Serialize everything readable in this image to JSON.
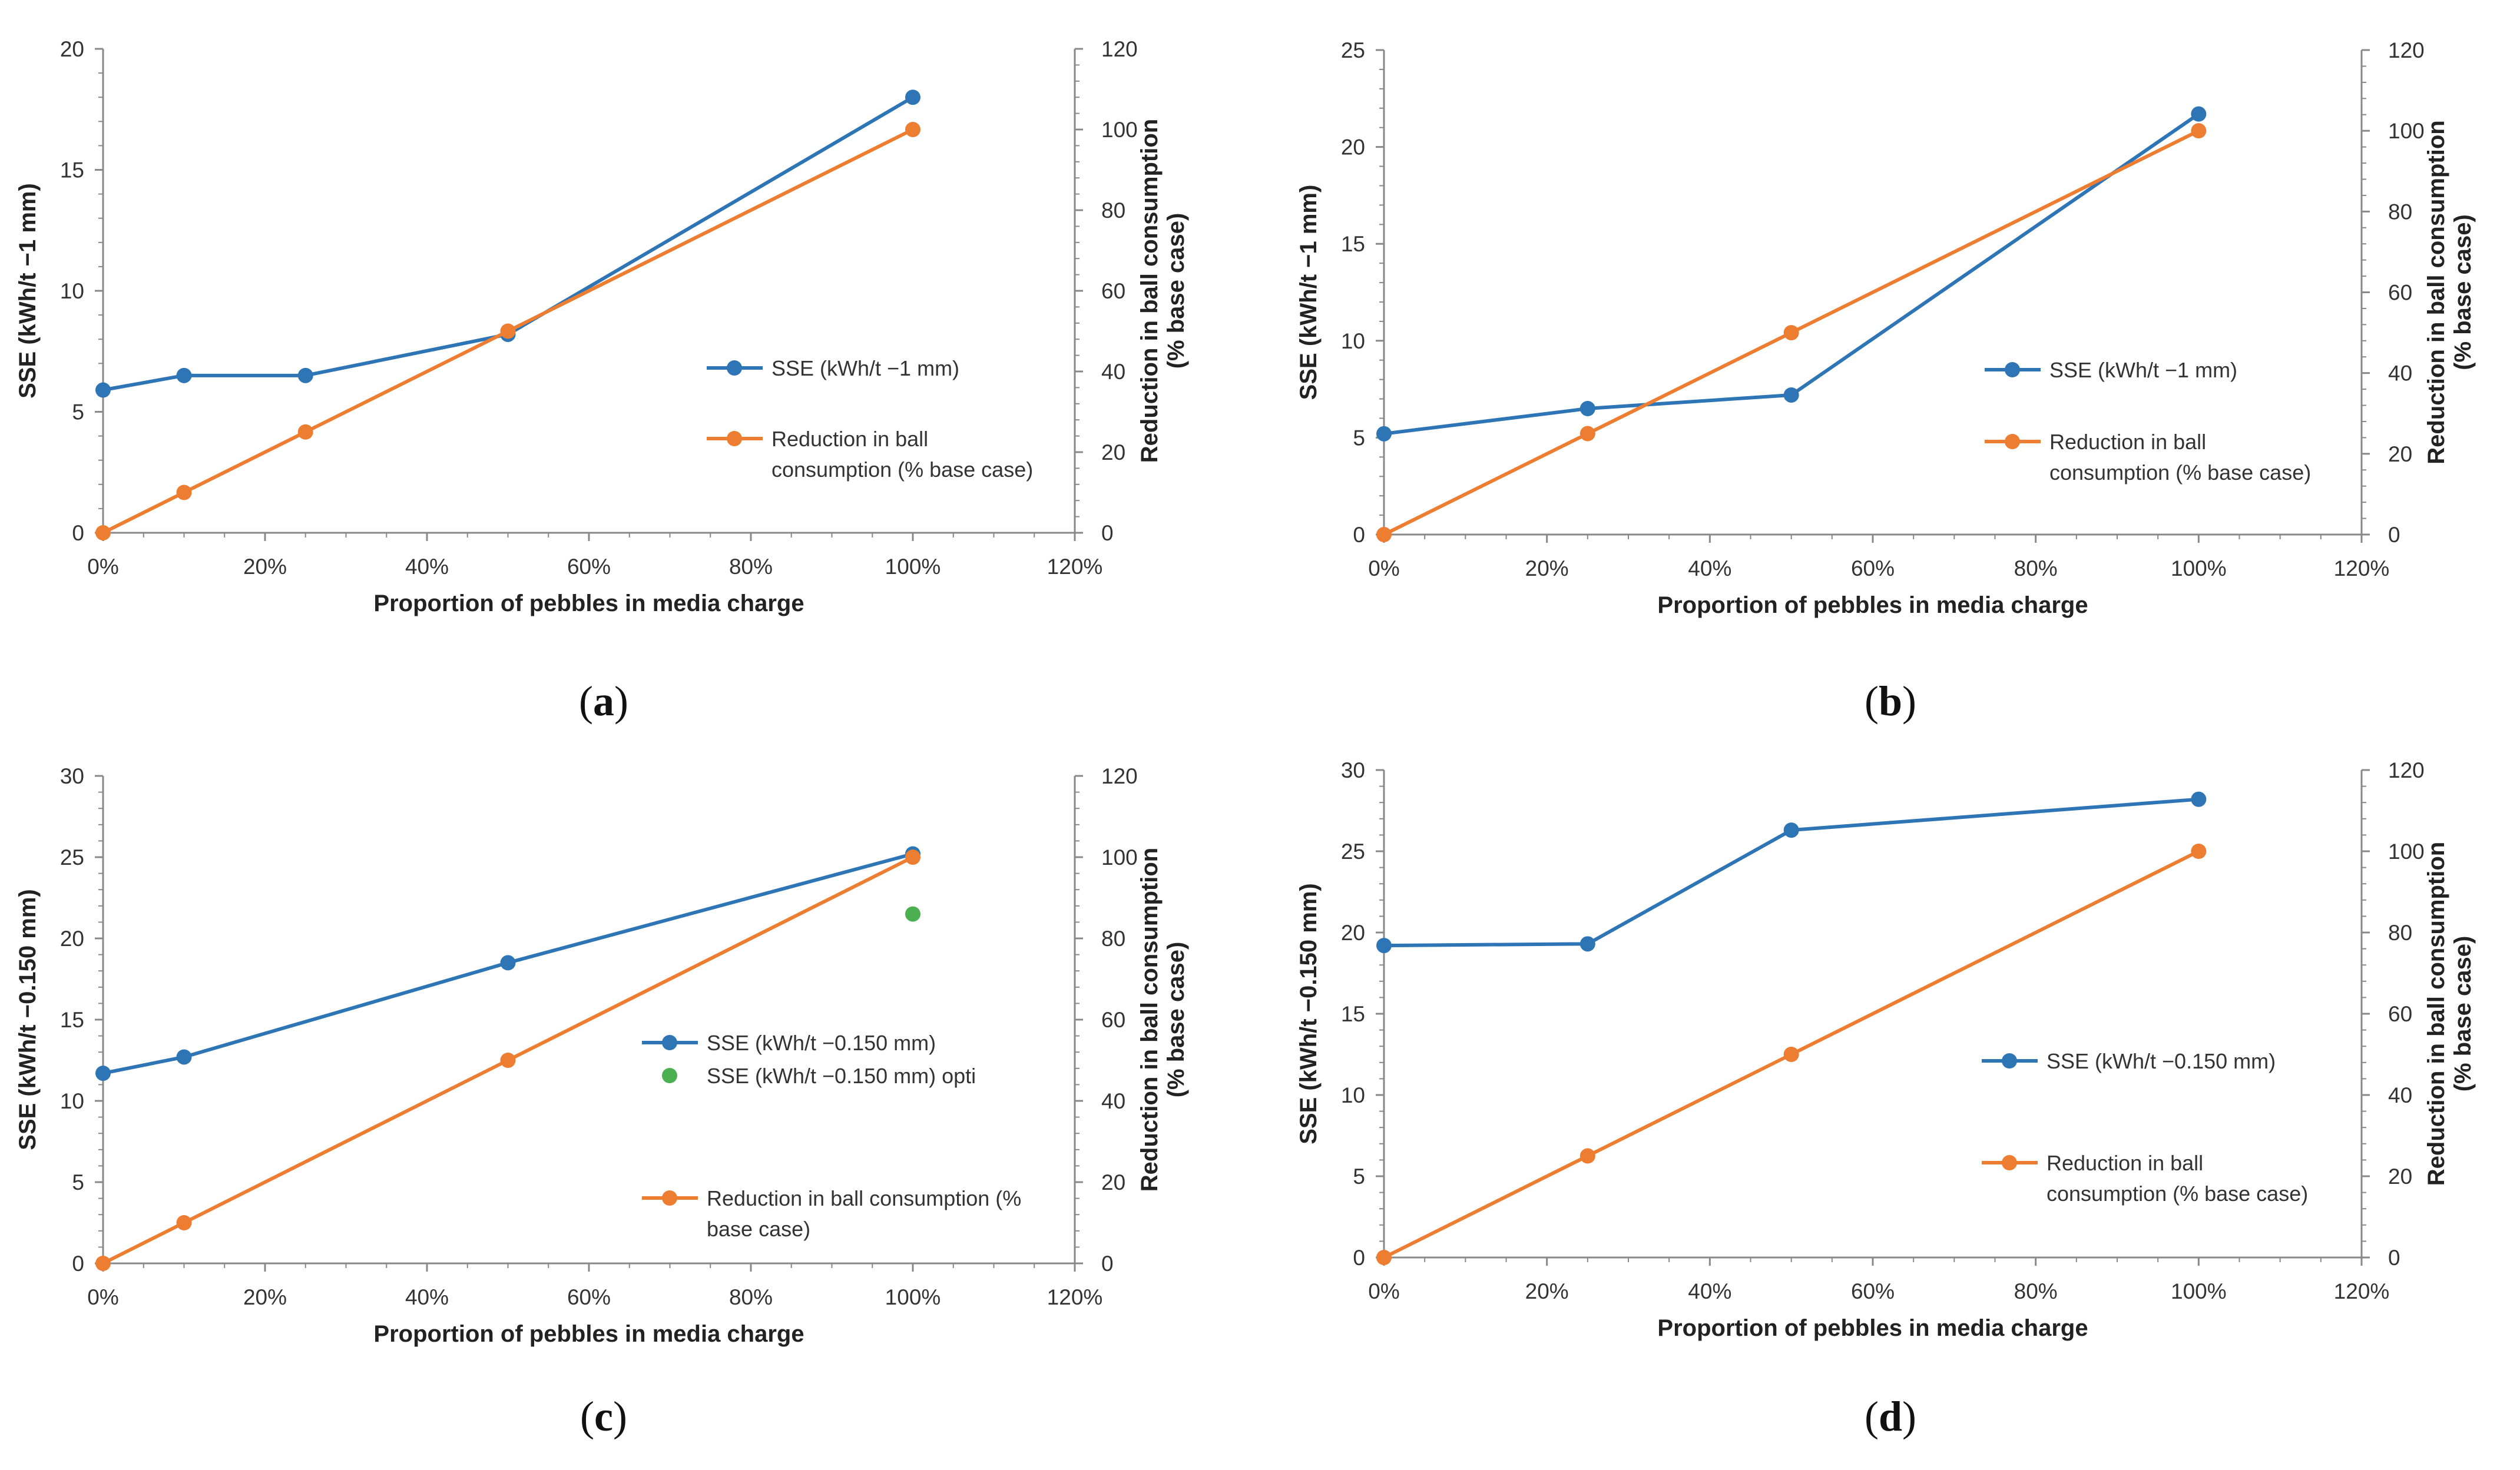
{
  "chart_data": [
    {
      "type": "line",
      "panel_label": "a",
      "xlabel": "Proportion of pebbles in media charge",
      "ylabel": "SSE (kWh/t −1 mm)",
      "y2label": [
        "Reduction in ball consumption",
        "(% base case)"
      ],
      "xlim": [
        0,
        1.2
      ],
      "x_ticks": [
        0,
        0.2,
        0.4,
        0.6,
        0.8,
        1.0,
        1.2
      ],
      "x_tick_labels": [
        "0%",
        "20%",
        "40%",
        "60%",
        "80%",
        "100%",
        "120%"
      ],
      "ylim": [
        0,
        20
      ],
      "y_ticks": [
        0,
        5,
        10,
        15,
        20
      ],
      "y_tick_labels": [
        "0",
        "5",
        "10",
        "15",
        "20"
      ],
      "y2lim": [
        0,
        120
      ],
      "y2_ticks": [
        0,
        20,
        40,
        60,
        80,
        100,
        120
      ],
      "y2_tick_labels": [
        "0",
        "20",
        "40",
        "60",
        "80",
        "100",
        "120"
      ],
      "series": [
        {
          "name": "SSE (kWh/t −1 mm)",
          "legend_lines": [
            "SSE (kWh/t −1 mm)"
          ],
          "axis": "left",
          "color": "#2E75B6",
          "line": true,
          "x": [
            0,
            0.1,
            0.25,
            0.5,
            1.0
          ],
          "values": [
            5.9,
            6.5,
            6.5,
            8.2,
            18.0
          ]
        },
        {
          "name": "Reduction in ball consumption (% base case)",
          "legend_lines": [
            "Reduction in ball",
            "consumption (% base case)"
          ],
          "axis": "right",
          "color": "#ED7D31",
          "line": true,
          "x": [
            0,
            0.1,
            0.25,
            0.5,
            1.0
          ],
          "values": [
            0,
            10,
            25,
            50,
            100
          ]
        }
      ]
    },
    {
      "type": "line",
      "panel_label": "b",
      "xlabel": "Proportion of pebbles in media charge",
      "ylabel": "SSE (kWh/t −1 mm)",
      "y2label": [
        "Reduction in ball consumption",
        "(% base case)"
      ],
      "xlim": [
        0,
        1.2
      ],
      "x_ticks": [
        0,
        0.2,
        0.4,
        0.6,
        0.8,
        1.0,
        1.2
      ],
      "x_tick_labels": [
        "0%",
        "20%",
        "40%",
        "60%",
        "80%",
        "100%",
        "120%"
      ],
      "ylim": [
        0,
        25
      ],
      "y_ticks": [
        0,
        5,
        10,
        15,
        20,
        25
      ],
      "y_tick_labels": [
        "0",
        "5",
        "10",
        "15",
        "20",
        "25"
      ],
      "y2lim": [
        0,
        120
      ],
      "y2_ticks": [
        0,
        20,
        40,
        60,
        80,
        100,
        120
      ],
      "y2_tick_labels": [
        "0",
        "20",
        "40",
        "60",
        "80",
        "100",
        "120"
      ],
      "series": [
        {
          "name": "SSE (kWh/t −1 mm)",
          "legend_lines": [
            "SSE (kWh/t −1 mm)"
          ],
          "axis": "left",
          "color": "#2E75B6",
          "line": true,
          "x": [
            0,
            0.25,
            0.5,
            1.0
          ],
          "values": [
            5.2,
            6.5,
            7.2,
            21.7
          ]
        },
        {
          "name": "Reduction in ball consumption (% base case)",
          "legend_lines": [
            "Reduction in ball",
            "consumption (% base case)"
          ],
          "axis": "right",
          "color": "#ED7D31",
          "line": true,
          "x": [
            0,
            0.25,
            0.5,
            1.0
          ],
          "values": [
            0,
            25,
            50,
            100
          ]
        }
      ]
    },
    {
      "type": "line",
      "panel_label": "c",
      "xlabel": "Proportion of pebbles in media charge",
      "ylabel": "SSE (kWh/t −0.150 mm)",
      "y2label": [
        "Reduction in ball consumption",
        "(% base case)"
      ],
      "xlim": [
        0,
        1.2
      ],
      "x_ticks": [
        0,
        0.2,
        0.4,
        0.6,
        0.8,
        1.0,
        1.2
      ],
      "x_tick_labels": [
        "0%",
        "20%",
        "40%",
        "60%",
        "80%",
        "100%",
        "120%"
      ],
      "ylim": [
        0,
        30
      ],
      "y_ticks": [
        0,
        5,
        10,
        15,
        20,
        25,
        30
      ],
      "y_tick_labels": [
        "0",
        "5",
        "10",
        "15",
        "20",
        "25",
        "30"
      ],
      "y2lim": [
        0,
        120
      ],
      "y2_ticks": [
        0,
        20,
        40,
        60,
        80,
        100,
        120
      ],
      "y2_tick_labels": [
        "0",
        "20",
        "40",
        "60",
        "80",
        "100",
        "120"
      ],
      "series": [
        {
          "name": "SSE (kWh/t −0.150 mm)",
          "legend_lines": [
            "SSE (kWh/t −0.150 mm)"
          ],
          "axis": "left",
          "color": "#2E75B6",
          "line": true,
          "x": [
            0,
            0.1,
            0.5,
            1.0
          ],
          "values": [
            11.7,
            12.7,
            18.5,
            25.2
          ]
        },
        {
          "name": "SSE (kWh/t −0.150 mm) opti",
          "legend_lines": [
            "SSE (kWh/t −0.150 mm) opti"
          ],
          "axis": "left",
          "color": "#4CAF50",
          "line": false,
          "x": [
            1.0
          ],
          "values": [
            21.5
          ]
        },
        {
          "name": "Reduction in ball consumption (% base case)",
          "legend_lines": [
            "Reduction in ball consumption (%",
            "base case)"
          ],
          "axis": "right",
          "color": "#ED7D31",
          "line": true,
          "x": [
            0,
            0.1,
            0.5,
            1.0
          ],
          "values": [
            0,
            10,
            50,
            100
          ]
        }
      ]
    },
    {
      "type": "line",
      "panel_label": "d",
      "xlabel": "Proportion of pebbles in media charge",
      "ylabel": "SSE (kWh/t −0.150 mm)",
      "y2label": [
        "Reduction in ball consumption",
        "(% base case)"
      ],
      "xlim": [
        0,
        1.2
      ],
      "x_ticks": [
        0,
        0.2,
        0.4,
        0.6,
        0.8,
        1.0,
        1.2
      ],
      "x_tick_labels": [
        "0%",
        "20%",
        "40%",
        "60%",
        "80%",
        "100%",
        "120%"
      ],
      "ylim": [
        0,
        30
      ],
      "y_ticks": [
        0,
        5,
        10,
        15,
        20,
        25,
        30
      ],
      "y_tick_labels": [
        "0",
        "5",
        "10",
        "15",
        "20",
        "25",
        "30"
      ],
      "y2lim": [
        0,
        120
      ],
      "y2_ticks": [
        0,
        20,
        40,
        60,
        80,
        100,
        120
      ],
      "y2_tick_labels": [
        "0",
        "20",
        "40",
        "60",
        "80",
        "100",
        "120"
      ],
      "series": [
        {
          "name": "SSE (kWh/t −0.150 mm)",
          "legend_lines": [
            "SSE (kWh/t −0.150 mm)"
          ],
          "axis": "left",
          "color": "#2E75B6",
          "line": true,
          "x": [
            0,
            0.25,
            0.5,
            1.0
          ],
          "values": [
            19.2,
            19.3,
            26.3,
            28.2
          ]
        },
        {
          "name": "Reduction in ball consumption (% base case)",
          "legend_lines": [
            "Reduction in ball",
            "consumption (% base case)"
          ],
          "axis": "right",
          "color": "#ED7D31",
          "line": true,
          "x": [
            0,
            0.25,
            0.5,
            1.0
          ],
          "values": [
            0,
            25,
            50,
            100
          ]
        }
      ]
    }
  ]
}
